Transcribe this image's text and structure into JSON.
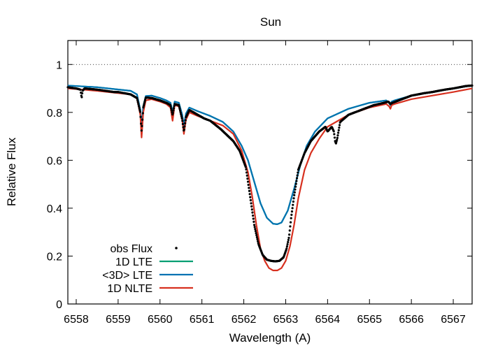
{
  "chart_data": {
    "type": "line",
    "title": "Sun",
    "xlabel": "Wavelength (A)",
    "ylabel": "Relative Flux",
    "xlim": [
      6557.8,
      6567.45
    ],
    "ylim": [
      0,
      1.1
    ],
    "xticks": [
      6558,
      6559,
      6560,
      6561,
      6562,
      6563,
      6564,
      6565,
      6566,
      6567
    ],
    "yticks": [
      0,
      0.2,
      0.4,
      0.6,
      0.8,
      1
    ],
    "reference_line": {
      "y": 1.0,
      "style": "dotted"
    },
    "legend_position": "bottom-left",
    "series": [
      {
        "name": "obs Flux",
        "style": "points",
        "color": "#000000",
        "x": [
          6557.8,
          6558.0,
          6558.1,
          6558.13,
          6558.15,
          6558.2,
          6558.5,
          6558.7,
          6558.9,
          6559.0,
          6559.3,
          6559.45,
          6559.53,
          6559.56,
          6559.6,
          6559.66,
          6559.8,
          6560.0,
          6560.15,
          6560.25,
          6560.3,
          6560.35,
          6560.45,
          6560.53,
          6560.57,
          6560.62,
          6560.7,
          6560.9,
          6561.05,
          6561.2,
          6561.45,
          6561.75,
          6561.9,
          6562.05,
          6562.15,
          6562.25,
          6562.35,
          6562.45,
          6562.55,
          6562.65,
          6562.75,
          6562.85,
          6562.95,
          6563.02,
          6563.08,
          6563.13,
          6563.2,
          6563.3,
          6563.45,
          6563.6,
          6563.8,
          6563.95,
          6564.0,
          6564.05,
          6564.1,
          6564.15,
          6564.18,
          6564.2,
          6564.23,
          6564.3,
          6564.5,
          6564.8,
          6565.1,
          6565.35,
          6565.45,
          6565.5,
          6565.55,
          6565.7,
          6566.0,
          6566.3,
          6566.5,
          6566.8,
          6567.0,
          6567.3,
          6567.45
        ],
        "y": [
          0.905,
          0.9,
          0.895,
          0.86,
          0.89,
          0.9,
          0.895,
          0.89,
          0.885,
          0.885,
          0.875,
          0.86,
          0.8,
          0.72,
          0.82,
          0.862,
          0.86,
          0.85,
          0.84,
          0.83,
          0.79,
          0.835,
          0.83,
          0.77,
          0.72,
          0.78,
          0.81,
          0.79,
          0.775,
          0.765,
          0.73,
          0.68,
          0.64,
          0.57,
          0.45,
          0.33,
          0.25,
          0.205,
          0.185,
          0.18,
          0.178,
          0.18,
          0.195,
          0.23,
          0.28,
          0.36,
          0.45,
          0.56,
          0.63,
          0.68,
          0.72,
          0.74,
          0.72,
          0.73,
          0.74,
          0.72,
          0.68,
          0.67,
          0.69,
          0.76,
          0.79,
          0.81,
          0.83,
          0.84,
          0.845,
          0.835,
          0.84,
          0.85,
          0.87,
          0.88,
          0.885,
          0.895,
          0.9,
          0.91,
          0.912
        ]
      },
      {
        "name": "1D LTE",
        "style": "line",
        "color": "#009e73",
        "x": [
          6557.8,
          6558.5,
          6559.3,
          6559.45,
          6559.53,
          6559.56,
          6559.6,
          6559.66,
          6559.8,
          6560.0,
          6560.15,
          6560.25,
          6560.3,
          6560.35,
          6560.45,
          6560.53,
          6560.57,
          6560.62,
          6560.7,
          6560.9,
          6561.2,
          6561.5,
          6561.75,
          6561.95,
          6562.1,
          6562.25,
          6562.4,
          6562.55,
          6562.7,
          6562.8,
          6562.9,
          6563.05,
          6563.2,
          6563.35,
          6563.5,
          6563.7,
          6564.0,
          6564.5,
          6565.0,
          6565.4,
          6565.47,
          6565.5,
          6565.53,
          6565.6,
          6566.0,
          6566.5,
          6567.0,
          6567.45
        ],
        "y": [
          0.912,
          0.905,
          0.89,
          0.875,
          0.81,
          0.73,
          0.825,
          0.868,
          0.87,
          0.86,
          0.85,
          0.84,
          0.8,
          0.845,
          0.84,
          0.79,
          0.745,
          0.795,
          0.82,
          0.805,
          0.785,
          0.76,
          0.72,
          0.66,
          0.6,
          0.51,
          0.42,
          0.36,
          0.335,
          0.333,
          0.34,
          0.39,
          0.48,
          0.58,
          0.66,
          0.72,
          0.775,
          0.815,
          0.84,
          0.85,
          0.84,
          0.83,
          0.845,
          0.85,
          0.87,
          0.885,
          0.9,
          0.912
        ]
      },
      {
        "name": "<3D> LTE",
        "style": "line",
        "color": "#0072b2",
        "x": [
          6557.8,
          6558.5,
          6559.3,
          6559.45,
          6559.53,
          6559.56,
          6559.6,
          6559.66,
          6559.8,
          6560.0,
          6560.15,
          6560.25,
          6560.3,
          6560.35,
          6560.45,
          6560.53,
          6560.57,
          6560.62,
          6560.7,
          6560.9,
          6561.2,
          6561.5,
          6561.75,
          6561.95,
          6562.1,
          6562.25,
          6562.4,
          6562.55,
          6562.7,
          6562.8,
          6562.9,
          6563.05,
          6563.2,
          6563.35,
          6563.5,
          6563.7,
          6564.0,
          6564.5,
          6565.0,
          6565.4,
          6565.47,
          6565.5,
          6565.53,
          6565.6,
          6566.0,
          6566.5,
          6567.0,
          6567.45
        ],
        "y": [
          0.912,
          0.905,
          0.89,
          0.875,
          0.81,
          0.73,
          0.825,
          0.868,
          0.87,
          0.86,
          0.85,
          0.84,
          0.8,
          0.845,
          0.84,
          0.79,
          0.745,
          0.795,
          0.82,
          0.805,
          0.785,
          0.76,
          0.72,
          0.66,
          0.6,
          0.51,
          0.42,
          0.36,
          0.335,
          0.333,
          0.34,
          0.39,
          0.48,
          0.58,
          0.66,
          0.72,
          0.775,
          0.815,
          0.84,
          0.85,
          0.84,
          0.83,
          0.845,
          0.85,
          0.87,
          0.885,
          0.9,
          0.912
        ]
      },
      {
        "name": "1D NLTE",
        "style": "line",
        "color": "#d7301f",
        "x": [
          6557.8,
          6558.5,
          6559.3,
          6559.45,
          6559.53,
          6559.56,
          6559.6,
          6559.66,
          6559.8,
          6560.0,
          6560.15,
          6560.25,
          6560.3,
          6560.35,
          6560.45,
          6560.53,
          6560.57,
          6560.62,
          6560.7,
          6560.9,
          6561.2,
          6561.5,
          6561.75,
          6561.95,
          6562.1,
          6562.2,
          6562.3,
          6562.4,
          6562.5,
          6562.6,
          6562.7,
          6562.8,
          6562.9,
          6563.0,
          6563.1,
          6563.2,
          6563.3,
          6563.45,
          6563.6,
          6563.8,
          6564.0,
          6564.5,
          6565.0,
          6565.4,
          6565.47,
          6565.5,
          6565.53,
          6565.6,
          6566.0,
          6566.5,
          6567.0,
          6567.45
        ],
        "y": [
          0.9,
          0.89,
          0.875,
          0.86,
          0.79,
          0.695,
          0.8,
          0.85,
          0.855,
          0.845,
          0.835,
          0.82,
          0.765,
          0.83,
          0.825,
          0.77,
          0.71,
          0.77,
          0.8,
          0.785,
          0.765,
          0.745,
          0.71,
          0.64,
          0.55,
          0.45,
          0.33,
          0.23,
          0.18,
          0.15,
          0.14,
          0.14,
          0.15,
          0.18,
          0.24,
          0.33,
          0.44,
          0.56,
          0.63,
          0.69,
          0.74,
          0.79,
          0.82,
          0.835,
          0.825,
          0.815,
          0.83,
          0.835,
          0.855,
          0.87,
          0.885,
          0.9
        ]
      }
    ]
  }
}
